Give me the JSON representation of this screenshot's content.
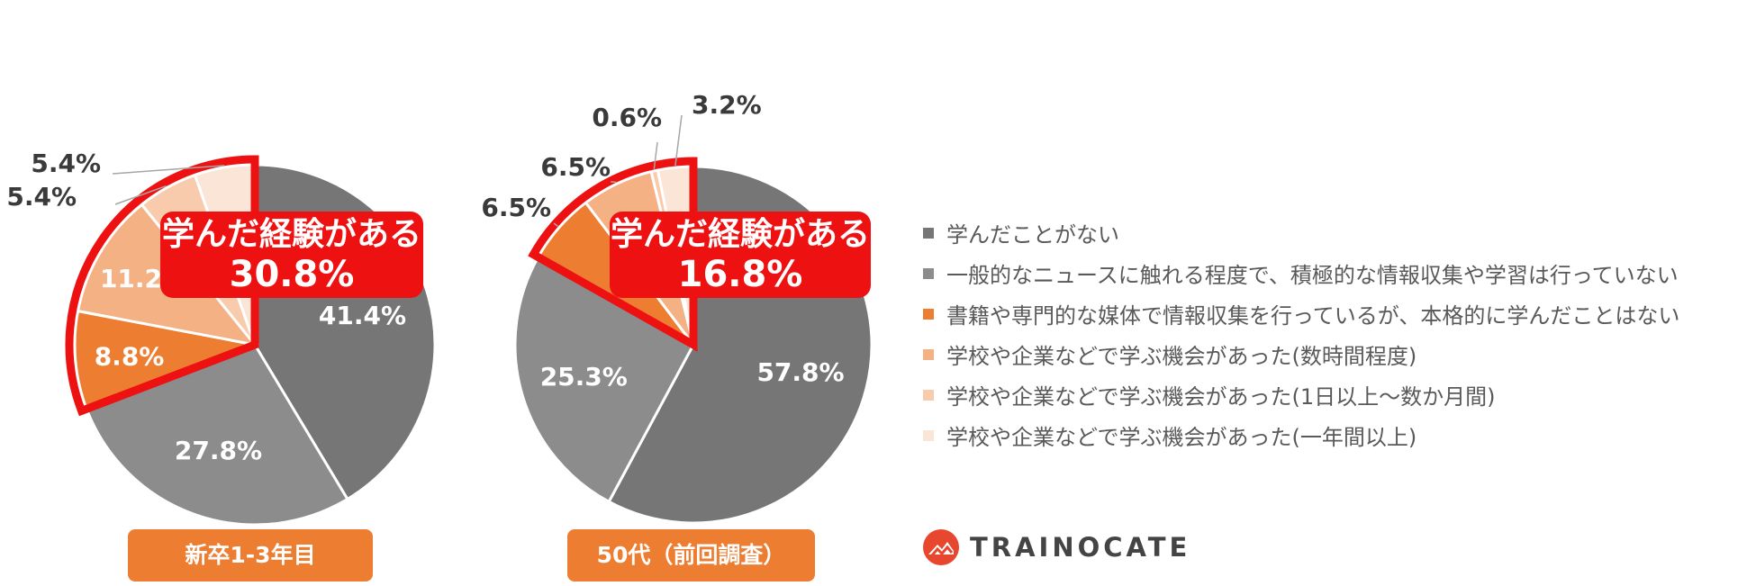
{
  "chart_data": [
    {
      "type": "pie",
      "categories": [
        "学んだことがない",
        "一般的なニュースに触れる程度で、積極的な情報収集や学習は行っていない",
        "書籍や専門的な媒体で情報収集を行っているが、本格的に学んだことはない",
        "学校や企業などで学ぶ機会があった(数時間程度)",
        "学校や企業などで学ぶ機会があった(1日以上～数か月間)",
        "学校や企業などで学ぶ機会があった(一年間以上)"
      ],
      "values": [
        41.4,
        27.8,
        8.8,
        11.2,
        5.4,
        5.4
      ],
      "labels": [
        "41.4%",
        "27.8%",
        "8.8%",
        "11.2%",
        "5.4%",
        "5.4%"
      ],
      "group_label": "新卒1-3年目",
      "callout_title": "学んだ経験がある",
      "callout_value": "30.8%"
    },
    {
      "type": "pie",
      "categories": [
        "学んだことがない",
        "一般的なニュースに触れる程度で、積極的な情報収集や学習は行っていない",
        "書籍や専門的な媒体で情報収集を行っているが、本格的に学んだことはない",
        "学校や企業などで学ぶ機会があった(数時間程度)",
        "学校や企業などで学ぶ機会があった(1日以上～数か月間)",
        "学校や企業などで学ぶ機会があった(一年間以上)"
      ],
      "values": [
        57.8,
        25.3,
        6.5,
        6.5,
        0.6,
        3.2
      ],
      "labels": [
        "57.8%",
        "25.3%",
        "6.5%",
        "6.5%",
        "0.6%",
        "3.2%"
      ],
      "group_label": "50代（前回調査）",
      "callout_title": "学んだ経験がある",
      "callout_value": "16.8%"
    }
  ],
  "legend": {
    "items": [
      {
        "label": "学んだことがない",
        "color": "#767676"
      },
      {
        "label": "一般的なニュースに触れる程度で、積極的な情報収集や学習は行っていない",
        "color": "#8c8c8c"
      },
      {
        "label": "書籍や専門的な媒体で情報収集を行っているが、本格的に学んだことはない",
        "color": "#ed7d31"
      },
      {
        "label": "学校や企業などで学ぶ機会があった(数時間程度)",
        "color": "#f4b183"
      },
      {
        "label": "学校や企業などで学ぶ機会があった(1日以上～数か月間)",
        "color": "#f8cbad"
      },
      {
        "label": "学校や企業などで学ぶ機会があった(一年間以上)",
        "color": "#fbe5d6"
      }
    ]
  },
  "highlight_color": "#ee1111",
  "logo": {
    "text": "TRAINOCATE",
    "icon": "trainocate-logo-icon",
    "color": "#e8472f"
  }
}
